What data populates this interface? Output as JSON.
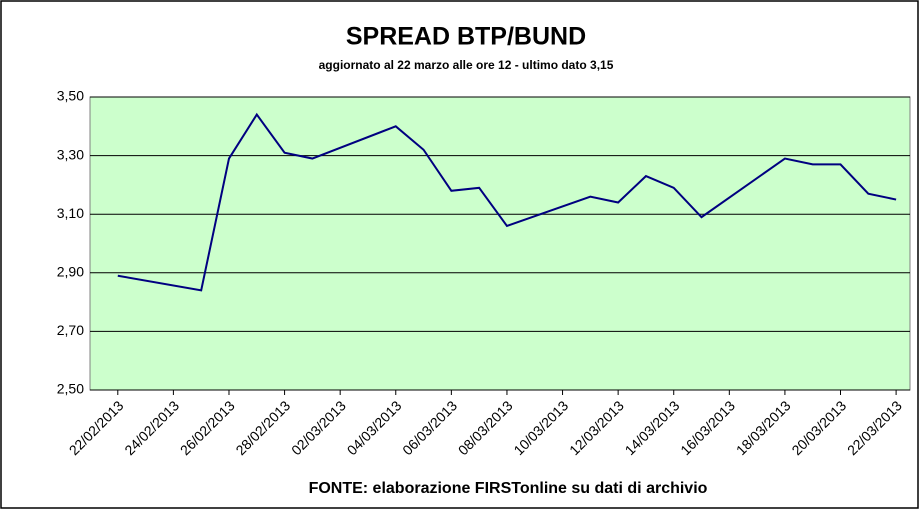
{
  "chart_data": {
    "type": "line",
    "title": "SPREAD  BTP/BUND",
    "subtitle": "aggiornato al 22 marzo alle ore 12 - ultimo dato 3,15",
    "source": "FONTE: elaborazione FIRSTonline su dati di archivio",
    "x": [
      "22/02/2013",
      "25/02/2013",
      "26/02/2013",
      "27/02/2013",
      "28/02/2013",
      "01/03/2013",
      "04/03/2013",
      "05/03/2013",
      "06/03/2013",
      "07/03/2013",
      "08/03/2013",
      "11/03/2013",
      "12/03/2013",
      "13/03/2013",
      "14/03/2013",
      "15/03/2013",
      "18/03/2013",
      "19/03/2013",
      "20/03/2013",
      "21/03/2013",
      "22/03/2013"
    ],
    "series": [
      {
        "name": "Spread",
        "color": "#000080",
        "values": [
          2.89,
          2.84,
          3.29,
          3.44,
          3.31,
          3.29,
          3.4,
          3.32,
          3.18,
          3.19,
          3.06,
          3.16,
          3.14,
          3.23,
          3.19,
          3.09,
          3.29,
          3.27,
          3.27,
          3.17,
          3.15
        ]
      }
    ],
    "xticks": [
      "22/02/2013",
      "24/02/2013",
      "26/02/2013",
      "28/02/2013",
      "02/03/2013",
      "04/03/2013",
      "06/03/2013",
      "08/03/2013",
      "10/03/2013",
      "12/03/2013",
      "14/03/2013",
      "16/03/2013",
      "18/03/2013",
      "20/03/2013",
      "22/03/2013"
    ],
    "ylim": [
      2.5,
      3.5
    ],
    "yticks": [
      {
        "value": 2.5,
        "label": "2,50"
      },
      {
        "value": 2.7,
        "label": "2,70"
      },
      {
        "value": 2.9,
        "label": "2,90"
      },
      {
        "value": 3.1,
        "label": "3,10"
      },
      {
        "value": 3.3,
        "label": "3,30"
      },
      {
        "value": 3.5,
        "label": "3,50"
      }
    ],
    "grid": true,
    "plot_background": "#ccffcc"
  }
}
